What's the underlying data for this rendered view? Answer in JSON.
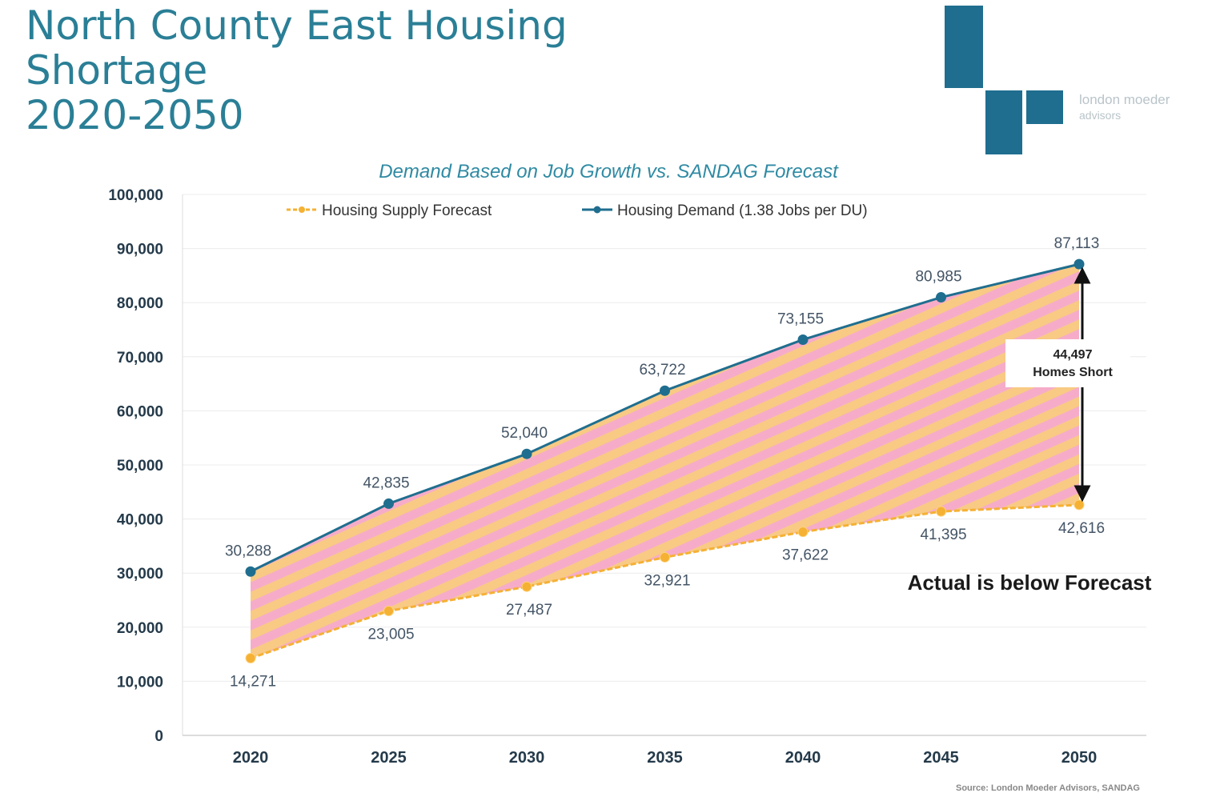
{
  "slide": {
    "title_lines": [
      "North County East Housing",
      "Shortage",
      "2020-2050"
    ]
  },
  "logo": {
    "name_line1": "london moeder",
    "name_line2": "advisors",
    "color": "#1f6e8f"
  },
  "chart_data": {
    "type": "line",
    "title": "Demand Based on Job Growth vs. SANDAG Forecast",
    "categories": [
      "2020",
      "2025",
      "2030",
      "2035",
      "2040",
      "2045",
      "2050"
    ],
    "series": [
      {
        "name": "Housing Supply Forecast",
        "values": [
          14271,
          23005,
          27487,
          32921,
          37622,
          41395,
          42616
        ],
        "labels": [
          "14,271",
          "23,005",
          "27,487",
          "32,921",
          "37,622",
          "41,395",
          "42,616"
        ],
        "color": "#f5b133",
        "style": "dashed"
      },
      {
        "name": "Housing Demand (1.38 Jobs per DU)",
        "values": [
          30288,
          42835,
          52040,
          63722,
          73155,
          80985,
          87113
        ],
        "labels": [
          "30,288",
          "42,835",
          "52,040",
          "63,722",
          "73,155",
          "80,985",
          "87,113"
        ],
        "color": "#1f6e8f",
        "style": "solid"
      }
    ],
    "ylim": [
      0,
      100000
    ],
    "yticks": [
      0,
      10000,
      20000,
      30000,
      40000,
      50000,
      60000,
      70000,
      80000,
      90000,
      100000
    ],
    "ytick_labels": [
      "0",
      "10,000",
      "20,000",
      "30,000",
      "40,000",
      "50,000",
      "60,000",
      "70,000",
      "80,000",
      "90,000",
      "100,000"
    ],
    "grid": true,
    "legend_position": "top",
    "gap_fill": "striped pink and orange",
    "gap_colors": [
      "#f6a8c6",
      "#f8c77e"
    ],
    "annotations": {
      "gap_value": "44,497",
      "gap_text": "Homes Short",
      "note": "Actual is below Forecast"
    },
    "source": "Source: London Moeder Advisors, SANDAG"
  }
}
